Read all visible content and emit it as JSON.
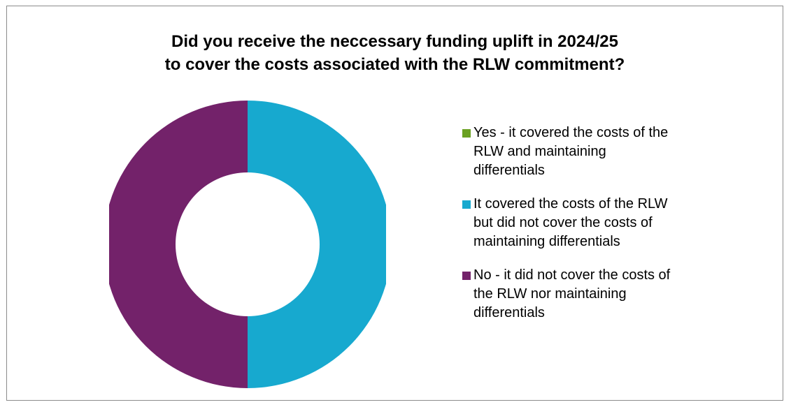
{
  "chart_data": {
    "type": "pie",
    "variant": "donut",
    "title_lines": [
      "Did you receive the neccessary funding uplift in 2024/25",
      "to cover the costs associated with the RLW commitment?"
    ],
    "categories": [
      "Yes - it covered the costs of the RLW and maintaining differentials",
      "It covered the costs of the RLW but did not cover the costs of maintaining differentials",
      "No - it did not cover the costs of the RLW nor maintaining differentials"
    ],
    "legend_lines": [
      [
        "Yes - it covered the costs of the",
        "RLW and maintaining",
        "differentials"
      ],
      [
        "It covered the costs of the RLW",
        "but did not cover the costs of",
        "maintaining differentials"
      ],
      [
        "No - it did not cover the costs of",
        "the RLW nor maintaining",
        "differentials"
      ]
    ],
    "values": [
      0,
      50,
      50
    ],
    "colors": [
      "#6aa121",
      "#17a9cf",
      "#73226a"
    ],
    "legend_position": "right"
  }
}
